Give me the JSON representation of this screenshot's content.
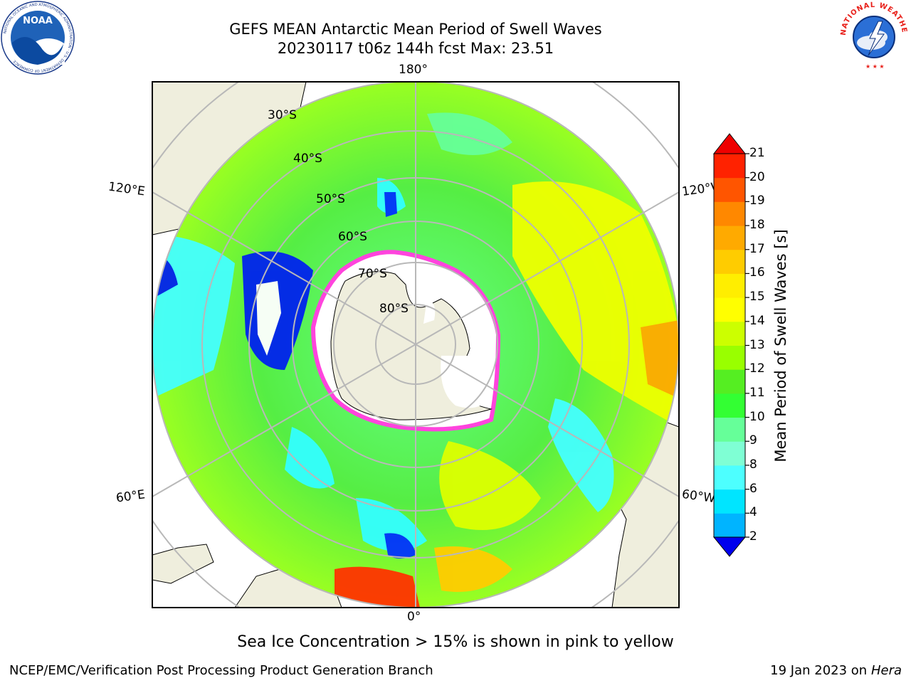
{
  "header": {
    "title_line1": "GEFS MEAN Antarctic Mean Period of Swell Waves",
    "title_line2": "20230117 t06z 144h fcst   Max: 23.51"
  },
  "logos": {
    "left": {
      "name": "NOAA",
      "icon": "noaa-logo",
      "ring_text": "NATIONAL OCEANIC AND ATMOSPHERIC ADMINISTRATION · U.S. DEPARTMENT OF COMMERCE"
    },
    "right": {
      "name": "NATIONAL WEATHER SERVICE",
      "icon": "nws-logo"
    }
  },
  "map": {
    "projection": "south-polar-stereographic",
    "lon_labels": {
      "top": "180°",
      "bottom": "0°",
      "left_upper": "120°E",
      "left_lower": "60°E",
      "right_upper": "120°W",
      "right_lower": "60°W"
    },
    "lat_labels": [
      "30°S",
      "40°S",
      "50°S",
      "60°S",
      "70°S",
      "80°S"
    ]
  },
  "colorbar": {
    "title": "Mean Period of Swell Waves [s]",
    "tick_labels": [
      "2",
      "4",
      "6",
      "8",
      "9",
      "10",
      "11",
      "12",
      "13",
      "14",
      "15",
      "16",
      "17",
      "18",
      "19",
      "20",
      "21"
    ],
    "colors": [
      "#0033ff",
      "#00b4ff",
      "#00e5ff",
      "#4dffff",
      "#7fffd4",
      "#66ff99",
      "#33ff33",
      "#55ee22",
      "#99ff00",
      "#ccff00",
      "#ffff00",
      "#ffee00",
      "#ffcc00",
      "#ffaa00",
      "#ff8800",
      "#ff5500",
      "#ff2200"
    ],
    "under_color": "#0000ee",
    "over_color": "#ee0000"
  },
  "caption": "Sea Ice Concentration > 15% is shown in pink to yellow",
  "footer": {
    "left": "NCEP/EMC/Verification Post Processing Product Generation Branch",
    "right_date": "19 Jan 2023 on",
    "right_machine": "Hera"
  }
}
